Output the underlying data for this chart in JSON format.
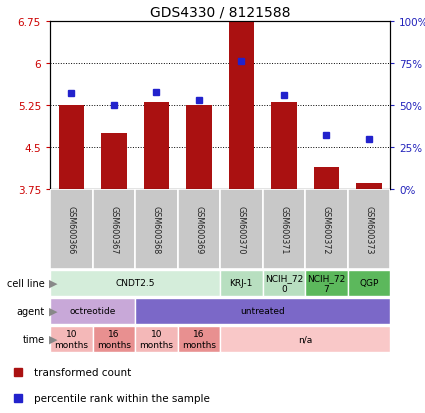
{
  "title": "GDS4330 / 8121588",
  "samples": [
    "GSM600366",
    "GSM600367",
    "GSM600368",
    "GSM600369",
    "GSM600370",
    "GSM600371",
    "GSM600372",
    "GSM600373"
  ],
  "red_values": [
    5.25,
    4.75,
    5.3,
    5.25,
    6.75,
    5.3,
    4.15,
    3.85
  ],
  "blue_values": [
    57,
    50,
    58,
    53,
    76,
    56,
    32,
    30
  ],
  "ylim": [
    3.75,
    6.75
  ],
  "yticks_left": [
    3.75,
    4.5,
    5.25,
    6.0,
    6.75
  ],
  "yticks_right": [
    0,
    25,
    50,
    75,
    100
  ],
  "ytick_labels_left": [
    "3.75",
    "4.5",
    "5.25",
    "6",
    "6.75"
  ],
  "ytick_labels_right": [
    "0%",
    "25%",
    "50%",
    "75%",
    "100%"
  ],
  "grid_vals": [
    4.5,
    5.25,
    6.0
  ],
  "cell_line_groups": [
    {
      "label": "CNDT2.5",
      "cols": [
        0,
        1,
        2,
        3
      ],
      "color": "#d4edda"
    },
    {
      "label": "KRJ-1",
      "cols": [
        4
      ],
      "color": "#b8dfc0"
    },
    {
      "label": "NCIH_72\n0",
      "cols": [
        5
      ],
      "color": "#b8dfc0"
    },
    {
      "label": "NCIH_72\n7",
      "cols": [
        6
      ],
      "color": "#5cb85c"
    },
    {
      "label": "QGP",
      "cols": [
        7
      ],
      "color": "#5cb85c"
    }
  ],
  "agent_groups": [
    {
      "label": "octreotide",
      "cols": [
        0,
        1
      ],
      "color": "#c8a8d8"
    },
    {
      "label": "untreated",
      "cols": [
        2,
        3,
        4,
        5,
        6,
        7
      ],
      "color": "#7b68c8"
    }
  ],
  "time_groups": [
    {
      "label": "10\nmonths",
      "cols": [
        0
      ],
      "color": "#f4b8b8"
    },
    {
      "label": "16\nmonths",
      "cols": [
        1
      ],
      "color": "#e89090"
    },
    {
      "label": "10\nmonths",
      "cols": [
        2
      ],
      "color": "#f4b8b8"
    },
    {
      "label": "16\nmonths",
      "cols": [
        3
      ],
      "color": "#e89090"
    },
    {
      "label": "n/a",
      "cols": [
        4,
        5,
        6,
        7
      ],
      "color": "#f9c8c8"
    }
  ],
  "row_labels": [
    "cell line",
    "agent",
    "time"
  ],
  "bar_color": "#aa1111",
  "dot_color": "#2222cc",
  "axis_left_color": "#cc0000",
  "axis_right_color": "#2222bb",
  "sample_box_color": "#c8c8c8",
  "sample_text_color": "#222222"
}
